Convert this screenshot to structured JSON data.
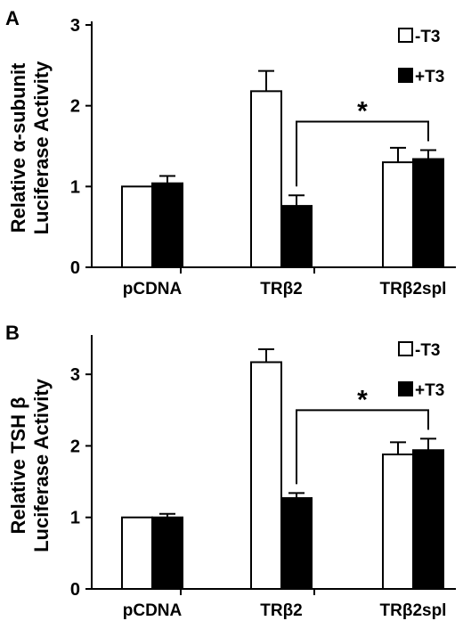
{
  "chart_data": [
    {
      "type": "bar",
      "panel_label": "A",
      "categories": [
        "pCDNA",
        "TRβ2",
        "TRβ2spl"
      ],
      "ylabel_line1": "Relative α-subunit",
      "ylabel_line2": "Luciferase Activity",
      "ylim": [
        0,
        3
      ],
      "yticks": [
        "0",
        "1",
        "2",
        "3"
      ],
      "legend_position": "top-right",
      "series": [
        {
          "name": "-T3",
          "fill": "#ffffff",
          "values": [
            1.0,
            2.18,
            1.3
          ],
          "errors": [
            0.0,
            0.25,
            0.18
          ]
        },
        {
          "name": "+T3",
          "fill": "#000000",
          "values": [
            1.04,
            0.76,
            1.34
          ],
          "errors": [
            0.09,
            0.13,
            0.11
          ]
        }
      ],
      "significance": "*"
    },
    {
      "type": "bar",
      "panel_label": "B",
      "categories": [
        "pCDNA",
        "TRβ2",
        "TRβ2spl"
      ],
      "ylabel_line1": "Relative TSH β",
      "ylabel_line2": "Luciferase Activity",
      "ylim": [
        0,
        3.5
      ],
      "yticks": [
        "0",
        "1",
        "2",
        "3"
      ],
      "legend_position": "top-right",
      "series": [
        {
          "name": "-T3",
          "fill": "#ffffff",
          "values": [
            1.0,
            3.17,
            1.88
          ],
          "errors": [
            0.0,
            0.18,
            0.17
          ]
        },
        {
          "name": "+T3",
          "fill": "#000000",
          "values": [
            1.0,
            1.27,
            1.94
          ],
          "errors": [
            0.05,
            0.07,
            0.16
          ]
        }
      ],
      "significance": "*"
    }
  ]
}
